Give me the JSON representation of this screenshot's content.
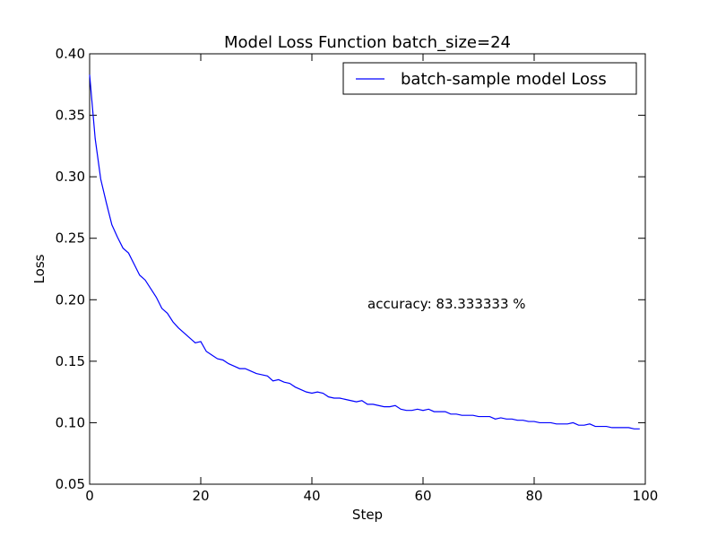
{
  "chart_data": {
    "type": "line",
    "title": "Model Loss Function batch_size=24",
    "xlabel": "Step",
    "ylabel": "Loss",
    "xlim": [
      0,
      100
    ],
    "ylim": [
      0.05,
      0.4
    ],
    "x_ticks": [
      "0",
      "20",
      "40",
      "60",
      "80",
      "100"
    ],
    "y_ticks": [
      "0.05",
      "0.10",
      "0.15",
      "0.20",
      "0.25",
      "0.30",
      "0.35",
      "0.40"
    ],
    "grid": false,
    "legend_position": "top-right",
    "annotation": "accuracy: 83.333333 %",
    "line_color": "#0000ff",
    "series": [
      {
        "name": "batch-sample model Loss",
        "x": [
          0,
          1,
          2,
          3,
          4,
          5,
          6,
          7,
          8,
          9,
          10,
          11,
          12,
          13,
          14,
          15,
          16,
          17,
          18,
          19,
          20,
          21,
          22,
          23,
          24,
          25,
          26,
          27,
          28,
          29,
          30,
          31,
          32,
          33,
          34,
          35,
          36,
          37,
          38,
          39,
          40,
          41,
          42,
          43,
          44,
          45,
          46,
          47,
          48,
          49,
          50,
          51,
          52,
          53,
          54,
          55,
          56,
          57,
          58,
          59,
          60,
          61,
          62,
          63,
          64,
          65,
          66,
          67,
          68,
          69,
          70,
          71,
          72,
          73,
          74,
          75,
          76,
          77,
          78,
          79,
          80,
          81,
          82,
          83,
          84,
          85,
          86,
          87,
          88,
          89,
          90,
          91,
          92,
          93,
          94,
          95,
          96,
          97,
          98,
          99
        ],
        "values": [
          0.383,
          0.331,
          0.298,
          0.279,
          0.261,
          0.251,
          0.242,
          0.238,
          0.229,
          0.22,
          0.216,
          0.209,
          0.202,
          0.193,
          0.189,
          0.182,
          0.177,
          0.173,
          0.169,
          0.165,
          0.166,
          0.158,
          0.155,
          0.152,
          0.151,
          0.148,
          0.146,
          0.144,
          0.144,
          0.142,
          0.14,
          0.139,
          0.138,
          0.134,
          0.135,
          0.133,
          0.132,
          0.129,
          0.127,
          0.125,
          0.124,
          0.125,
          0.124,
          0.121,
          0.12,
          0.12,
          0.119,
          0.118,
          0.117,
          0.118,
          0.115,
          0.115,
          0.114,
          0.113,
          0.113,
          0.114,
          0.111,
          0.11,
          0.11,
          0.111,
          0.11,
          0.111,
          0.109,
          0.109,
          0.109,
          0.107,
          0.107,
          0.106,
          0.106,
          0.106,
          0.105,
          0.105,
          0.105,
          0.103,
          0.104,
          0.103,
          0.103,
          0.102,
          0.102,
          0.101,
          0.101,
          0.1,
          0.1,
          0.1,
          0.099,
          0.099,
          0.099,
          0.1,
          0.098,
          0.098,
          0.099,
          0.097,
          0.097,
          0.097,
          0.096,
          0.096,
          0.096,
          0.096,
          0.095,
          0.095
        ]
      }
    ]
  }
}
